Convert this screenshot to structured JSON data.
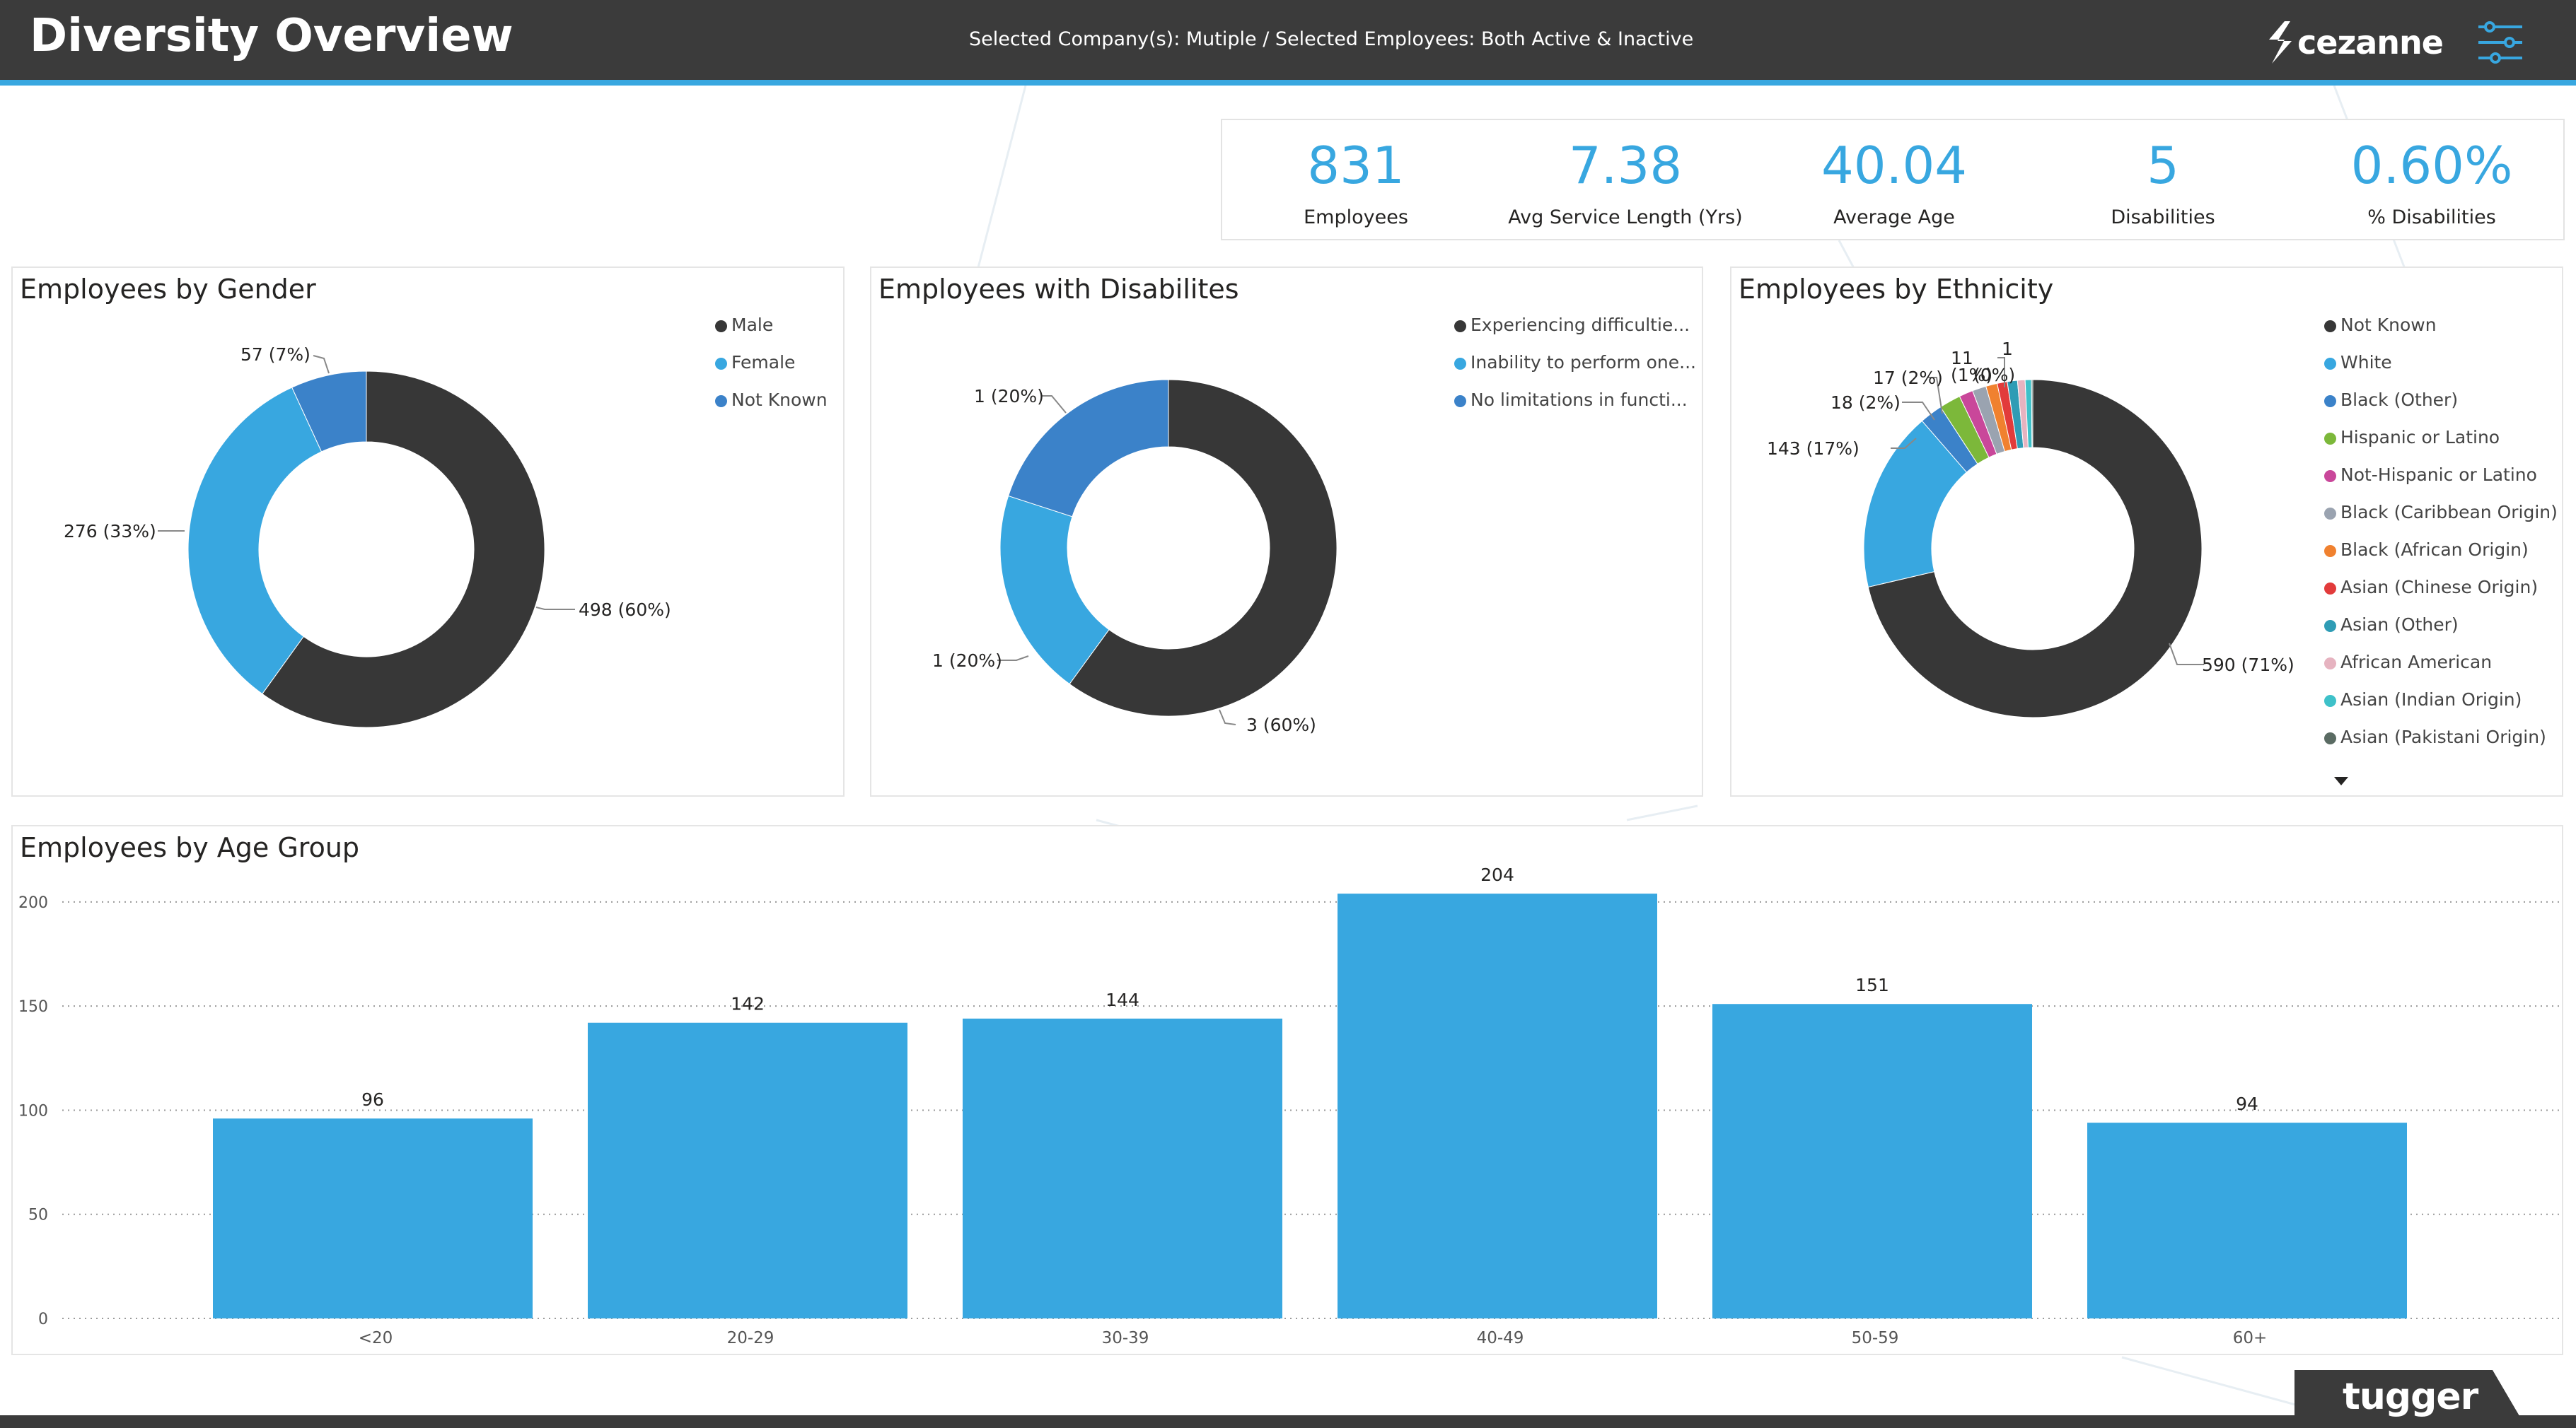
{
  "header": {
    "title": "Diversity Overview",
    "subtitle": "Selected Company(s): Mutiple / Selected Employees: Both Active & Inactive",
    "logo_text": "cezanne",
    "menu_icon": "filter-sliders-icon"
  },
  "colors": {
    "accent": "#38a7e0",
    "dark": "#3b3b3b",
    "blue_dark": "#3b82c9"
  },
  "kpis": [
    {
      "value": "831",
      "label": "Employees"
    },
    {
      "value": "7.38",
      "label": "Avg Service Length (Yrs)"
    },
    {
      "value": "40.04",
      "label": "Average Age"
    },
    {
      "value": "5",
      "label": "Disabilities"
    },
    {
      "value": "0.60%",
      "label": "% Disabilities"
    }
  ],
  "gender": {
    "title": "Employees by Gender",
    "legend": [
      {
        "label": "Male",
        "color": "#373737"
      },
      {
        "label": "Female",
        "color": "#38a7e0"
      },
      {
        "label": "Not Known",
        "color": "#3b82c9"
      }
    ],
    "labels": [
      "498 (60%)",
      "276 (33%)",
      "57 (7%)"
    ]
  },
  "disabilities": {
    "title": "Employees with Disabilites",
    "legend": [
      {
        "label": "Experiencing difficultie...",
        "color": "#373737"
      },
      {
        "label": "Inability to perform one...",
        "color": "#38a7e0"
      },
      {
        "label": "No limitations in functi...",
        "color": "#3b82c9"
      }
    ],
    "labels": [
      "3 (60%)",
      "1 (20%)",
      "1 (20%)"
    ]
  },
  "ethnicity": {
    "title": "Employees by Ethnicity",
    "legend": [
      {
        "label": "Not Known",
        "color": "#373737"
      },
      {
        "label": "White",
        "color": "#38a7e0"
      },
      {
        "label": "Black (Other)",
        "color": "#3b82c9"
      },
      {
        "label": "Hispanic or Latino",
        "color": "#7cb83a"
      },
      {
        "label": "Not-Hispanic or Latino",
        "color": "#c9479a"
      },
      {
        "label": "Black (Caribbean Origin)",
        "color": "#9aa3b0"
      },
      {
        "label": "Black (African Origin)",
        "color": "#f0812f"
      },
      {
        "label": "Asian (Chinese Origin)",
        "color": "#e23b3b"
      },
      {
        "label": "Asian (Other)",
        "color": "#2f9cb5"
      },
      {
        "label": "African American",
        "color": "#e6b3c0"
      },
      {
        "label": "Asian (Indian Origin)",
        "color": "#3ec1c9"
      },
      {
        "label": "Asian (Pakistani Origin)",
        "color": "#5a6b63"
      }
    ],
    "labels": [
      "590 (71%)",
      "143 (17%)",
      "18 (2%)",
      "17 (2%)",
      "(1%)",
      "11",
      "(0%)",
      "1"
    ],
    "more_icon": "caret-down-icon"
  },
  "age": {
    "title": "Employees by Age Group"
  },
  "footer": {
    "brand": "tugger"
  },
  "chart_data": [
    {
      "type": "pie",
      "title": "Employees by Gender",
      "categories": [
        "Male",
        "Female",
        "Not Known"
      ],
      "values": [
        498,
        276,
        57
      ]
    },
    {
      "type": "pie",
      "title": "Employees with Disabilites",
      "categories": [
        "Experiencing difficultie...",
        "Inability to perform one...",
        "No limitations in functi..."
      ],
      "values": [
        3,
        1,
        1
      ]
    },
    {
      "type": "pie",
      "title": "Employees by Ethnicity",
      "categories": [
        "Not Known",
        "White",
        "Black (Other)",
        "Hispanic or Latino",
        "Not-Hispanic or Latino",
        "Black (Caribbean Origin)",
        "Black (African Origin)",
        "Asian (Chinese Origin)",
        "Asian (Other)",
        "African American",
        "Asian (Indian Origin)",
        "Asian (Pakistani Origin)"
      ],
      "values": [
        590,
        143,
        18,
        17,
        11,
        11,
        9,
        8,
        8,
        6,
        5,
        1
      ]
    },
    {
      "type": "bar",
      "title": "Employees by Age Group",
      "categories": [
        "<20",
        "20-29",
        "30-39",
        "40-49",
        "50-59",
        "60+"
      ],
      "values": [
        96,
        142,
        144,
        204,
        151,
        94
      ],
      "yticks": [
        "0",
        "50",
        "100",
        "150",
        "200"
      ],
      "ylim": [
        0,
        220
      ],
      "grid": true
    }
  ]
}
